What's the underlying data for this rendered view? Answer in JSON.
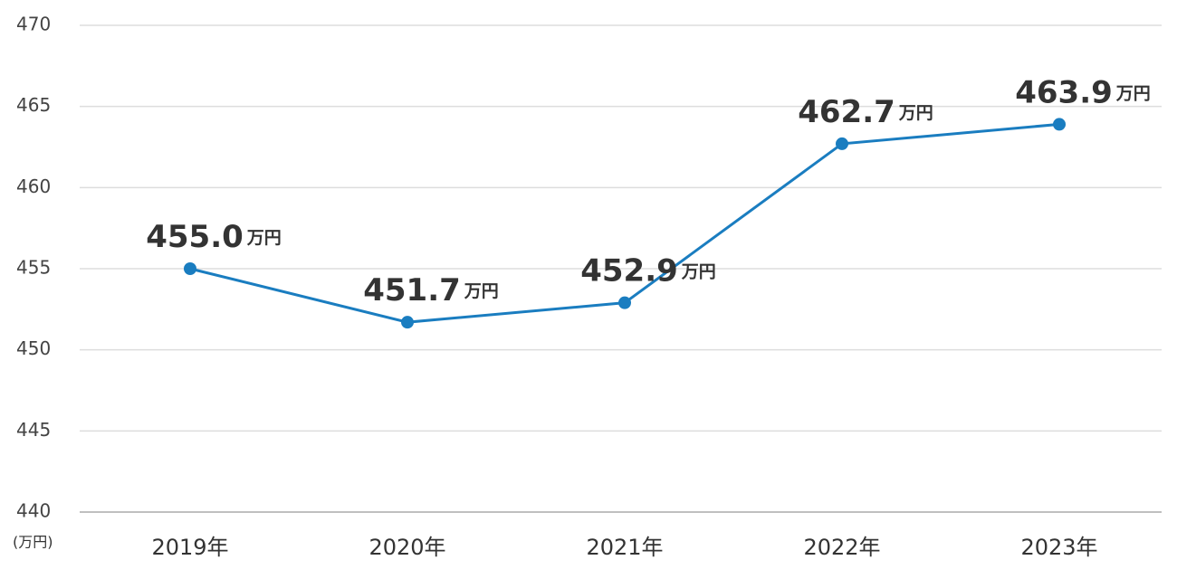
{
  "chart_data": {
    "type": "line",
    "categories": [
      "2019年",
      "2020年",
      "2021年",
      "2022年",
      "2023年"
    ],
    "values": [
      455.0,
      451.7,
      452.9,
      462.7,
      463.9
    ],
    "value_labels": [
      "455.0",
      "451.7",
      "452.9",
      "462.7",
      "463.9"
    ],
    "value_unit": "万円",
    "y_unit_label": "(万円)",
    "color": "#1a7dc0",
    "ylim": [
      440,
      470
    ],
    "yticks": [
      440,
      445,
      450,
      455,
      460,
      465,
      470
    ],
    "grid": true
  }
}
